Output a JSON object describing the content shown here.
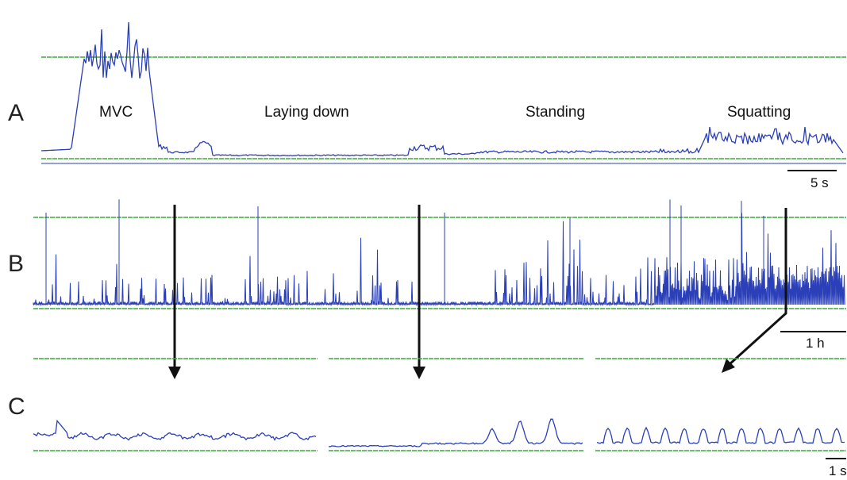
{
  "figure": {
    "panels": [
      {
        "letter": "A"
      },
      {
        "letter": "B"
      },
      {
        "letter": "C"
      }
    ]
  },
  "colors": {
    "signal": "#2a3fb8",
    "reference_line": "#3aaa3a",
    "arrow": "#111111",
    "text": "#111111"
  },
  "chart_data": [
    {
      "type": "line",
      "panel": "A",
      "phases": [
        "MVC",
        "Laying down",
        "Standing",
        "Squatting"
      ],
      "scale_bar": "5 s",
      "reference_lines": [
        "upper",
        "baseline"
      ],
      "trace": {
        "start_level": 0.06,
        "segments": [
          {
            "phase": "MVC",
            "level_min": 0.7,
            "level_max": 1.05
          },
          {
            "phase": "Laying down",
            "level_min": 0.0,
            "level_max": 0.1
          },
          {
            "phase": "Standing",
            "level_min": 0.02,
            "level_max": 0.12
          },
          {
            "phase": "Squatting",
            "level_min": 0.15,
            "level_max": 0.25
          }
        ]
      }
    },
    {
      "type": "line",
      "panel": "B",
      "scale_bar": "1 h",
      "reference_lines": [
        "upper",
        "baseline"
      ],
      "trace": {
        "description_level": "spiky EMG activity, dense in last third"
      }
    },
    {
      "type": "line",
      "panel": "C",
      "scale_bar": "1 s",
      "segments": [
        {
          "source_phase": "Laying down"
        },
        {
          "source_phase": "Standing"
        },
        {
          "source_phase": "Squatting"
        }
      ]
    }
  ]
}
